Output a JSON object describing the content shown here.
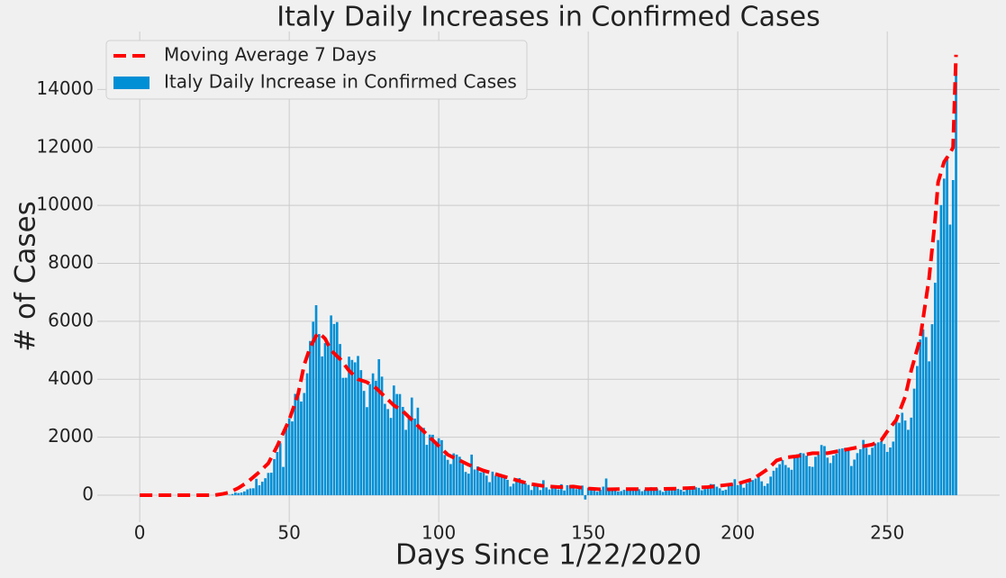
{
  "chart_data": {
    "type": "bar",
    "title": "Italy Daily Increases in Confirmed Cases",
    "xlabel": "Days Since 1/22/2020",
    "ylabel": "# of Cases",
    "xlim": [
      -14.2,
      287.6
    ],
    "ylim": [
      -930,
      16000
    ],
    "xticks": [
      0,
      50,
      100,
      150,
      200,
      250
    ],
    "yticks": [
      0,
      2000,
      4000,
      6000,
      8000,
      10000,
      12000,
      14000
    ],
    "grid": true,
    "legend": "upper left",
    "series": [
      {
        "name": "Moving Average 7 Days",
        "type": "line",
        "color": "#ff0000",
        "dashed": true,
        "x": [
          0,
          25,
          28,
          30,
          33,
          36,
          40,
          43,
          46,
          50,
          53,
          55,
          57,
          59,
          60,
          62,
          64,
          67,
          70,
          73,
          76,
          79,
          82,
          85,
          88,
          91,
          94,
          97,
          100,
          103,
          106,
          110,
          115,
          120,
          125,
          130,
          135,
          140,
          145,
          150,
          155,
          160,
          170,
          180,
          190,
          200,
          205,
          210,
          213,
          216,
          220,
          225,
          230,
          235,
          240,
          245,
          248,
          250,
          253,
          256,
          258,
          261,
          264,
          266,
          267,
          269,
          271,
          272,
          273
        ],
        "values": [
          0,
          0,
          50,
          100,
          250,
          450,
          800,
          1100,
          1700,
          2600,
          3500,
          4500,
          5100,
          5500,
          5600,
          5400,
          5000,
          4700,
          4300,
          4000,
          3900,
          3700,
          3400,
          3100,
          2900,
          2600,
          2300,
          2000,
          1700,
          1400,
          1250,
          1050,
          850,
          700,
          550,
          400,
          320,
          280,
          300,
          230,
          200,
          210,
          210,
          230,
          280,
          400,
          550,
          900,
          1200,
          1300,
          1350,
          1450,
          1450,
          1550,
          1650,
          1750,
          1900,
          2200,
          2600,
          3400,
          4300,
          5400,
          7500,
          9500,
          10800,
          11500,
          11800,
          12000,
          15200
        ]
      },
      {
        "name": "Italy Daily Increase in Confirmed Cases",
        "type": "bar",
        "color": "#008fd5",
        "x": [
          0,
          1,
          2,
          3,
          4,
          5,
          6,
          7,
          8,
          9,
          10,
          11,
          12,
          13,
          14,
          15,
          16,
          17,
          18,
          19,
          20,
          21,
          22,
          23,
          24,
          25,
          26,
          27,
          28,
          29,
          30,
          31,
          32,
          33,
          34,
          35,
          36,
          37,
          38,
          39,
          40,
          41,
          42,
          43,
          44,
          45,
          46,
          47,
          48,
          49,
          50,
          51,
          52,
          53,
          54,
          55,
          56,
          57,
          58,
          59,
          60,
          61,
          62,
          63,
          64,
          65,
          66,
          67,
          68,
          69,
          70,
          71,
          72,
          73,
          74,
          75,
          76,
          77,
          78,
          79,
          80,
          81,
          82,
          83,
          84,
          85,
          86,
          87,
          88,
          89,
          90,
          91,
          92,
          93,
          94,
          95,
          96,
          97,
          98,
          99,
          100,
          101,
          102,
          103,
          104,
          105,
          106,
          107,
          108,
          109,
          110,
          111,
          112,
          113,
          114,
          115,
          116,
          117,
          118,
          119,
          120,
          121,
          122,
          123,
          124,
          125,
          126,
          127,
          128,
          129,
          130,
          131,
          132,
          133,
          134,
          135,
          136,
          137,
          138,
          139,
          140,
          141,
          142,
          143,
          144,
          145,
          146,
          147,
          148,
          149,
          150,
          151,
          152,
          153,
          154,
          155,
          156,
          157,
          158,
          159,
          160,
          161,
          162,
          163,
          164,
          165,
          166,
          167,
          168,
          169,
          170,
          171,
          172,
          173,
          174,
          175,
          176,
          177,
          178,
          179,
          180,
          181,
          182,
          183,
          184,
          185,
          186,
          187,
          188,
          189,
          190,
          191,
          192,
          193,
          194,
          195,
          196,
          197,
          198,
          199,
          200,
          201,
          202,
          203,
          204,
          205,
          206,
          207,
          208,
          209,
          210,
          211,
          212,
          213,
          214,
          215,
          216,
          217,
          218,
          219,
          220,
          221,
          222,
          223,
          224,
          225,
          226,
          227,
          228,
          229,
          230,
          231,
          232,
          233,
          234,
          235,
          236,
          237,
          238,
          239,
          240,
          241,
          242,
          243,
          244,
          245,
          246,
          247,
          248,
          249,
          250,
          251,
          252,
          253,
          254,
          255,
          256,
          257,
          258,
          259,
          260,
          261,
          262,
          263,
          264,
          265,
          266,
          267,
          268,
          269,
          270,
          271,
          272,
          273
        ],
        "values": [
          0,
          0,
          0,
          0,
          0,
          0,
          0,
          0,
          0,
          2,
          0,
          0,
          0,
          0,
          0,
          0,
          1,
          0,
          0,
          0,
          0,
          0,
          0,
          0,
          0,
          0,
          0,
          0,
          0,
          0,
          17,
          42,
          93,
          74,
          93,
          131,
          202,
          233,
          240,
          566,
          342,
          466,
          587,
          769,
          778,
          1247,
          1492,
          1797,
          977,
          2313,
          2651,
          2547,
          3497,
          3590,
          3233,
          3526,
          4207,
          5322,
          5986,
          6557,
          5560,
          4789,
          5249,
          5210,
          6203,
          5909,
          5974,
          5217,
          4050,
          4053,
          4782,
          4668,
          4585,
          4805,
          4316,
          3599,
          3039,
          3836,
          4204,
          3951,
          4694,
          4092,
          3153,
          2972,
          2667,
          3786,
          3493,
          3491,
          3047,
          2256,
          2729,
          3370,
          2646,
          3021,
          2357,
          2324,
          1739,
          2091,
          2086,
          1872,
          1965,
          1900,
          1389,
          1221,
          1075,
          1444,
          1401,
          1327,
          1083,
          802,
          744,
          1402,
          888,
          992,
          789,
          875,
          675,
          451,
          813,
          665,
          642,
          652,
          669,
          531,
          300,
          397,
          584,
          593,
          516,
          416,
          355,
          178,
          318,
          321,
          177,
          518,
          270,
          197,
          280,
          283,
          202,
          379,
          163,
          346,
          338,
          301,
          210,
          328,
          333,
          -148,
          262,
          224,
          218,
          122,
          190,
          296,
          577,
          259,
          175,
          174,
          126,
          142,
          187,
          201,
          223,
          235,
          192,
          208,
          138,
          193,
          229,
          276,
          188,
          234,
          169,
          114,
          163,
          230,
          233,
          249,
          219,
          190,
          129,
          282,
          306,
          252,
          275,
          255,
          170,
          212,
          289,
          386,
          379,
          295,
          239,
          159,
          190,
          384,
          402,
          552,
          347,
          463,
          259,
          412,
          481,
          523,
          574,
          629,
          479,
          320,
          403,
          642,
          845,
          947,
          1071,
          1210,
          1041,
          953,
          878,
          1367,
          1411,
          1462,
          1444,
          1365,
          996,
          978,
          1326,
          1397,
          1733,
          1695,
          1297,
          1108,
          1370,
          1434,
          1597,
          1616,
          1638,
          1587,
          1008,
          1229,
          1452,
          1585,
          1907,
          1638,
          1392,
          1640,
          1786,
          1825,
          1869,
          1766,
          1494,
          1648,
          1851,
          2548,
          2499,
          2844,
          2578,
          2257,
          2677,
          3678,
          4458,
          5372,
          5724,
          5456,
          4619,
          5901,
          7332,
          8804,
          10010,
          10925,
          11705,
          9338,
          10874,
          14700
        ]
      }
    ]
  }
}
